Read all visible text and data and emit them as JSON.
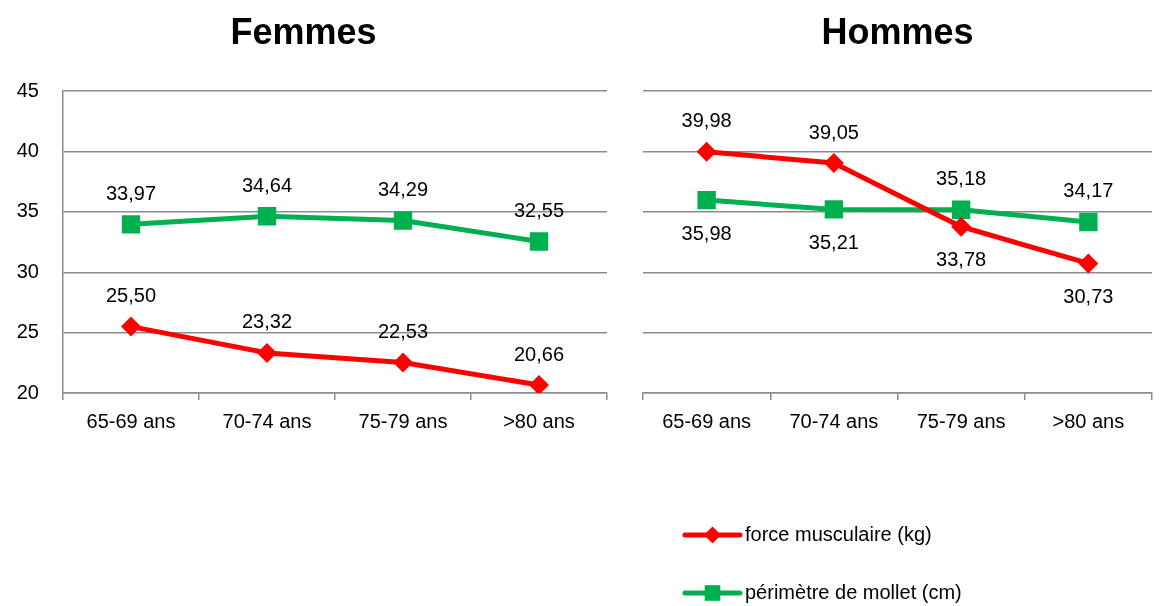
{
  "chart_data": [
    {
      "type": "line",
      "title": "Femmes",
      "categories": [
        "65-69 ans",
        "70-74 ans",
        "75-79 ans",
        ">80 ans"
      ],
      "series": [
        {
          "color": "#ff0000",
          "marker": "diamond",
          "values": [
            25.5,
            23.32,
            22.53,
            20.66
          ],
          "value_labels": [
            "25,50",
            "23,32",
            "22,53",
            "20,66"
          ]
        },
        {
          "color": "#00b050",
          "marker": "square",
          "values": [
            33.97,
            34.64,
            34.29,
            32.55
          ],
          "value_labels": [
            "33,97",
            "34,64",
            "34,29",
            "32,55"
          ]
        }
      ],
      "ylim": [
        20,
        45
      ],
      "yticks": [
        20,
        25,
        30,
        35,
        40,
        45
      ],
      "grid": "y"
    },
    {
      "type": "line",
      "title": "Hommes",
      "categories": [
        "65-69 ans",
        "70-74 ans",
        "75-79 ans",
        ">80 ans"
      ],
      "series": [
        {
          "name": "force musculaire (kg)",
          "color": "#ff0000",
          "marker": "diamond",
          "values": [
            39.98,
            39.05,
            33.78,
            30.73
          ],
          "value_labels": [
            "39,98",
            "39,05",
            "33,78",
            "30,73"
          ]
        },
        {
          "name": "périmètre de mollet (cm)",
          "color": "#00b050",
          "marker": "square",
          "values": [
            35.98,
            35.21,
            35.18,
            34.17
          ],
          "value_labels": [
            "35,98",
            "35,21",
            "35,18",
            "34,17"
          ]
        }
      ],
      "ylim": [
        20,
        45
      ],
      "yticks": [
        20,
        25,
        30,
        35,
        40,
        45
      ],
      "grid": "y",
      "tick_labels": "x",
      "legend": "bottom"
    }
  ]
}
